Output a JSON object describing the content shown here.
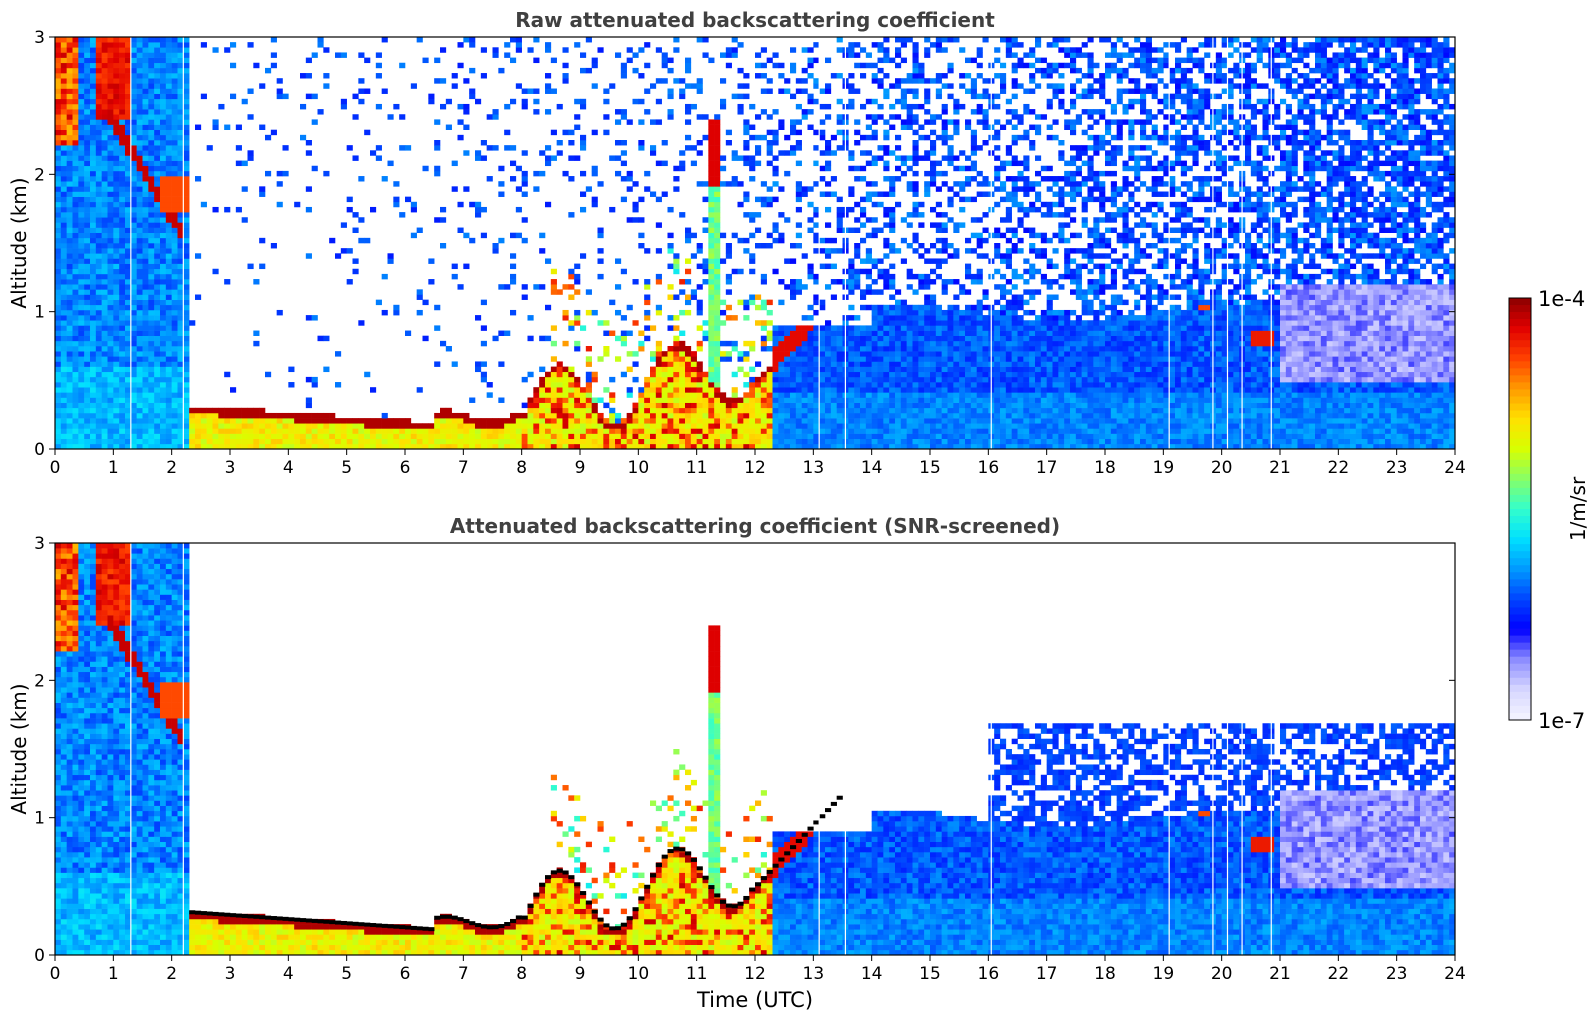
{
  "colors": {
    "colormap": [
      "#f4f4ff",
      "#d7d7ff",
      "#8c8cff",
      "#0000ff",
      "#0044ff",
      "#0099ff",
      "#00e0ff",
      "#33ffcc",
      "#88ff66",
      "#d8ff00",
      "#ffe000",
      "#ff9900",
      "#ff4000",
      "#e00000",
      "#8b0000"
    ],
    "title_text": "#404040",
    "axis": "#000000",
    "black_mark": "#000000"
  },
  "colorbar": {
    "label": "1/m/sr",
    "max_label": "1e-4",
    "min_label": "1e-7",
    "scale": "log"
  },
  "chart_data": [
    {
      "type": "heatmap",
      "title": "Raw attenuated backscattering coefficient",
      "xlabel": "",
      "ylabel": "Altitude (km)",
      "xlim": [
        0,
        24
      ],
      "ylim": [
        0,
        3
      ],
      "xticks": [
        "0",
        "1",
        "2",
        "3",
        "4",
        "5",
        "6",
        "7",
        "8",
        "9",
        "10",
        "11",
        "12",
        "13",
        "14",
        "15",
        "16",
        "17",
        "18",
        "19",
        "20",
        "21",
        "22",
        "23",
        "24"
      ],
      "yticks": [
        "0",
        "1",
        "2",
        "3"
      ],
      "colorbar_range": [
        "1e-7",
        "1e-4"
      ],
      "screened": false
    },
    {
      "type": "heatmap",
      "title": "Attenuated backscattering coefficient (SNR-screened)",
      "xlabel": "Time (UTC)",
      "ylabel": "Altitude (km)",
      "xlim": [
        0,
        24
      ],
      "ylim": [
        0,
        3
      ],
      "xticks": [
        "0",
        "1",
        "2",
        "3",
        "4",
        "5",
        "6",
        "7",
        "8",
        "9",
        "10",
        "11",
        "12",
        "13",
        "14",
        "15",
        "16",
        "17",
        "18",
        "19",
        "20",
        "21",
        "22",
        "23",
        "24"
      ],
      "yticks": [
        "0",
        "1",
        "2",
        "3"
      ],
      "colorbar_range": [
        "1e-7",
        "1e-4"
      ],
      "screened": true
    }
  ]
}
